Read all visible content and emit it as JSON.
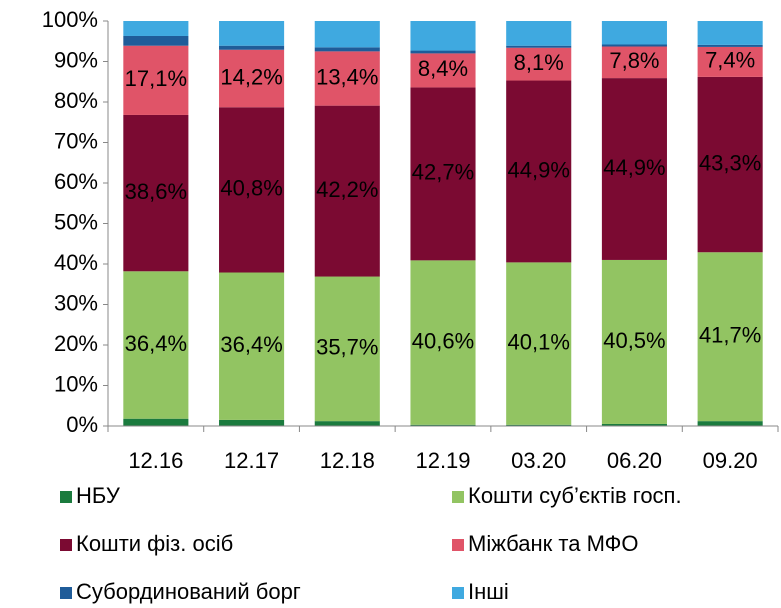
{
  "chart_data": {
    "type": "stacked_bar",
    "categories": [
      "12.16",
      "12.17",
      "12.18",
      "12.19",
      "03.20",
      "06.20",
      "09.20"
    ],
    "series": [
      {
        "name": "НБУ",
        "color": "#1b7b3e",
        "values": [
          1.8,
          1.5,
          1.2,
          0.3,
          0.3,
          0.5,
          1.2
        ]
      },
      {
        "name": "Кошти суб’єктів госп.",
        "color": "#92c462",
        "values": [
          36.4,
          36.4,
          35.7,
          40.6,
          40.1,
          40.5,
          41.7
        ],
        "value_labels": [
          "36,4%",
          "36,4%",
          "35,7%",
          "40,6%",
          "40,1%",
          "40,5%",
          "41,7%"
        ]
      },
      {
        "name": "Кошти фіз. осіб",
        "color": "#7b0a32",
        "values": [
          38.6,
          40.8,
          42.2,
          42.7,
          44.9,
          44.9,
          43.3
        ],
        "value_labels": [
          "38,6%",
          "40,8%",
          "42,2%",
          "42,7%",
          "44,9%",
          "44,9%",
          "43,3%"
        ]
      },
      {
        "name": "Міжбанк та МФО",
        "color": "#e05468",
        "values": [
          17.1,
          14.2,
          13.4,
          8.4,
          8.1,
          7.8,
          7.4
        ],
        "value_labels": [
          "17,1%",
          "14,2%",
          "13,4%",
          "8,4%",
          "8,1%",
          "7,8%",
          "7,4%"
        ]
      },
      {
        "name": "Субординований борг",
        "color": "#1f5c99",
        "values": [
          2.4,
          1.0,
          1.0,
          0.7,
          0.5,
          0.5,
          0.5
        ]
      },
      {
        "name": "Інші",
        "color": "#3fa9e0",
        "values": [
          3.7,
          6.1,
          6.5,
          7.3,
          6.1,
          5.8,
          5.9
        ]
      }
    ],
    "ylim": [
      0,
      100
    ],
    "yticks": [
      {
        "value": 0,
        "label": "0%"
      },
      {
        "value": 10,
        "label": "10%"
      },
      {
        "value": 20,
        "label": "20%"
      },
      {
        "value": 30,
        "label": "30%"
      },
      {
        "value": 40,
        "label": "40%"
      },
      {
        "value": 50,
        "label": "50%"
      },
      {
        "value": 60,
        "label": "60%"
      },
      {
        "value": 70,
        "label": "70%"
      },
      {
        "value": 80,
        "label": "80%"
      },
      {
        "value": 90,
        "label": "90%"
      },
      {
        "value": 100,
        "label": "100%"
      }
    ],
    "grid": false
  }
}
